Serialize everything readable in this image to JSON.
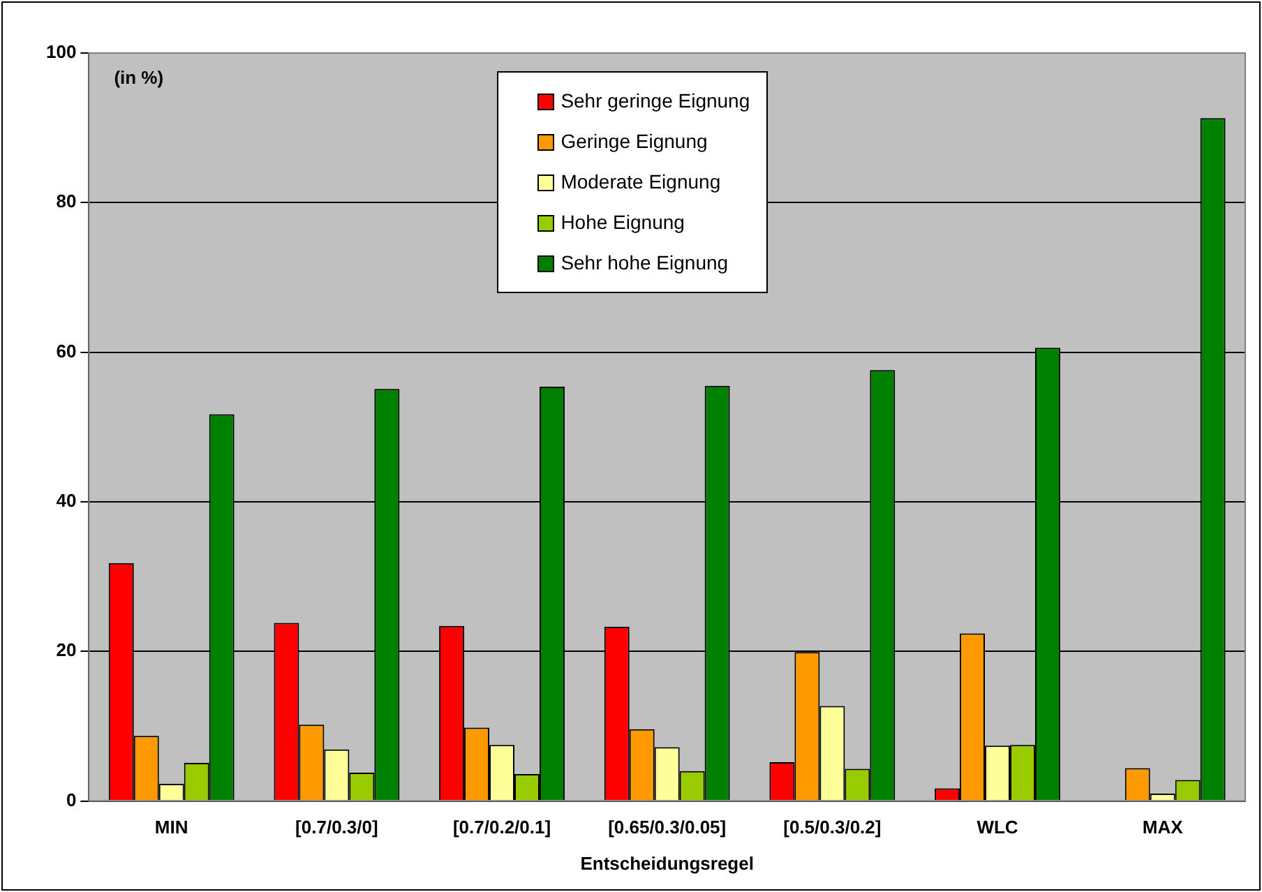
{
  "chart_data": {
    "type": "bar",
    "xlabel": "Entscheidungsregel",
    "annotations": [
      "(in %)"
    ],
    "categories": [
      "MIN",
      "[0.7/0.3/0]",
      "[0.7/0.2/0.1]",
      "[0.65/0.3/0.05]",
      "[0.5/0.3/0.2]",
      "WLC",
      "MAX"
    ],
    "series": [
      {
        "name": "Sehr geringe Eignung",
        "color": "#ff0000",
        "values": [
          31.8,
          23.8,
          23.4,
          23.3,
          5.2,
          1.7,
          null
        ]
      },
      {
        "name": "Geringe Eignung",
        "color": "#ff9900",
        "values": [
          8.7,
          10.2,
          9.8,
          9.6,
          19.9,
          22.4,
          4.4
        ]
      },
      {
        "name": "Moderate Eignung",
        "color": "#ffff99",
        "values": [
          2.3,
          6.9,
          7.5,
          7.2,
          12.7,
          7.4,
          1.0
        ]
      },
      {
        "name": "Hohe Eignung",
        "color": "#99cc00",
        "values": [
          5.1,
          3.8,
          3.6,
          4.0,
          4.3,
          7.5,
          2.8
        ]
      },
      {
        "name": "Sehr hohe Eignung",
        "color": "#008000",
        "values": [
          51.7,
          55.1,
          55.4,
          55.5,
          57.6,
          60.6,
          91.3
        ]
      }
    ],
    "ylim": [
      0,
      100
    ],
    "yticks": [
      0,
      20,
      40,
      60,
      80,
      100
    ],
    "grid": "y",
    "legend": "top"
  }
}
